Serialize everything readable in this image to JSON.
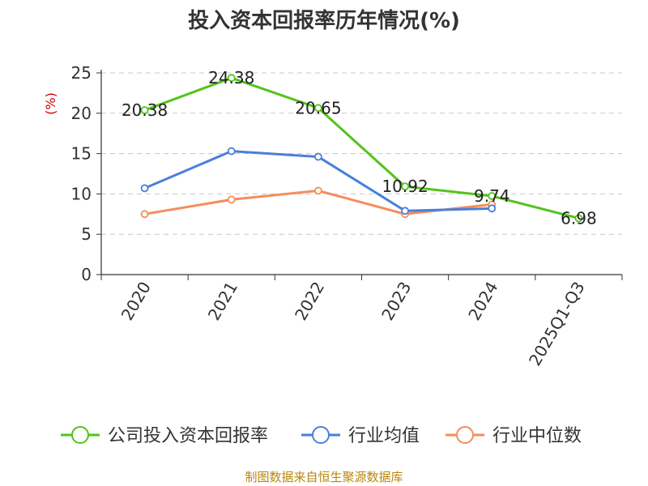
{
  "chart_data": {
    "type": "line",
    "title": "投入资本回报率历年情况(%)",
    "ylabel": "(%)",
    "categories": [
      "2020",
      "2021",
      "2022",
      "2023",
      "2024",
      "2025Q1-Q3"
    ],
    "ylim": [
      0,
      25
    ],
    "yticks": [
      0,
      5,
      10,
      15,
      20,
      25
    ],
    "grid": true,
    "legend_position": "bottom",
    "series": [
      {
        "name": "公司投入资本回报率",
        "color": "#52c41a",
        "values": [
          20.38,
          24.38,
          20.65,
          10.92,
          9.74,
          6.98
        ],
        "labels": [
          "20.38",
          "24.38",
          "20.65",
          "10.92",
          "9.74",
          "6.98"
        ]
      },
      {
        "name": "行业均值",
        "color": "#4a7fdc",
        "values": [
          10.7,
          15.3,
          14.6,
          7.9,
          8.2,
          null
        ]
      },
      {
        "name": "行业中位数",
        "color": "#f58d5c",
        "values": [
          7.5,
          9.3,
          10.4,
          7.5,
          8.7,
          null
        ]
      }
    ]
  },
  "source": "制图数据来自恒生聚源数据库"
}
